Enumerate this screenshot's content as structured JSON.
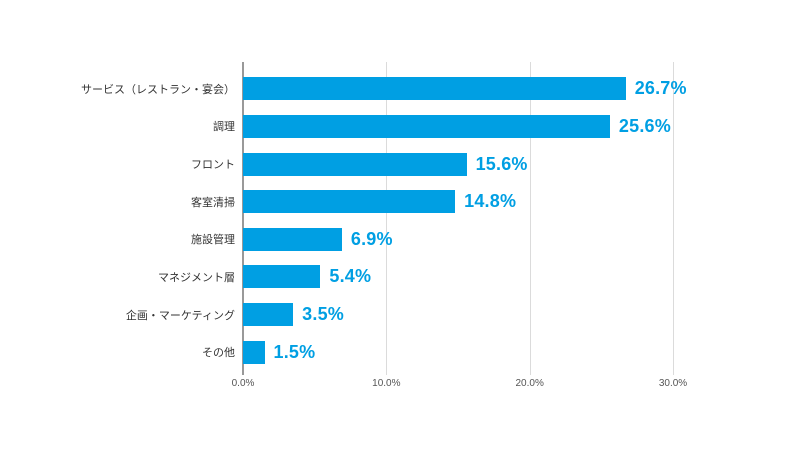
{
  "chart_data": {
    "type": "bar",
    "orientation": "horizontal",
    "title": "",
    "xlabel": "",
    "ylabel": "",
    "categories": [
      "サービス（レストラン・宴会）",
      "調理",
      "フロント",
      "客室清掃",
      "施設管理",
      "マネジメント層",
      "企画・マーケティング",
      "その他"
    ],
    "values": [
      26.7,
      25.6,
      15.6,
      14.8,
      6.9,
      5.4,
      3.5,
      1.5
    ],
    "value_labels": [
      "26.7%",
      "25.6%",
      "15.6%",
      "14.8%",
      "6.9%",
      "5.4%",
      "3.5%",
      "1.5%"
    ],
    "xlim": [
      0,
      30
    ],
    "x_ticks": [
      {
        "value": 0,
        "label": "0.0%"
      },
      {
        "value": 10,
        "label": "10.0%"
      },
      {
        "value": 20,
        "label": "20.0%"
      },
      {
        "value": 30,
        "label": "30.0%"
      }
    ],
    "grid": true,
    "legend_position": "none",
    "colors": {
      "bar": "#009FE3",
      "value_label": "#009FE3",
      "category_label": "#333333",
      "tick_label": "#555555",
      "gridline": "#DBDBDB",
      "axis_line": "#999999",
      "background": "#FFFFFF"
    }
  }
}
